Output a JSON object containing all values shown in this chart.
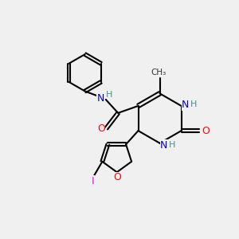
{
  "bg_color": "#f0f0f0",
  "bond_color": "#000000",
  "bond_width": 1.5,
  "atom_colors": {
    "N": "#0000cd",
    "O": "#ff0000",
    "I": "#ee00ee",
    "H": "#4a9090",
    "C": "#000000"
  },
  "font_size": 9,
  "title": ""
}
